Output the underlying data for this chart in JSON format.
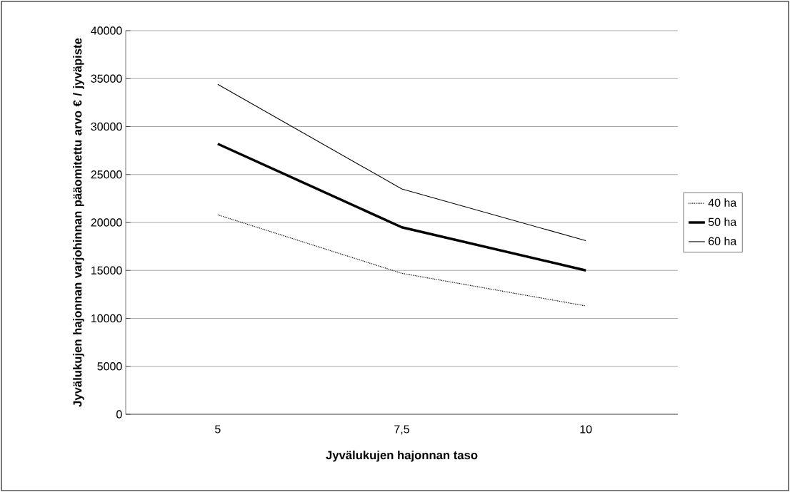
{
  "chart_data": {
    "type": "line",
    "xlabel": "Jyvälukujen hajonnan taso",
    "ylabel": "Jyvälukujen hajonnan varjohinnan pääomitettu arvo € / jyväpiste",
    "categories": [
      "5",
      "7,5",
      "10"
    ],
    "series": [
      {
        "name": "40 ha",
        "color": "#000000",
        "line_style": "dotted",
        "values": [
          20800,
          14700,
          11300
        ]
      },
      {
        "name": "50 ha",
        "color": "#000000",
        "line_style": "solid",
        "values": [
          28200,
          19500,
          15000
        ]
      },
      {
        "name": "60 ha",
        "color": "#000000",
        "line_style": "solid",
        "values": [
          34400,
          23500,
          18100
        ]
      }
    ],
    "ylim": [
      0,
      40000
    ],
    "yticks": [
      0,
      5000,
      10000,
      15000,
      20000,
      25000,
      30000,
      35000,
      40000
    ],
    "grid": "y",
    "legend": "right",
    "marker": "none"
  }
}
